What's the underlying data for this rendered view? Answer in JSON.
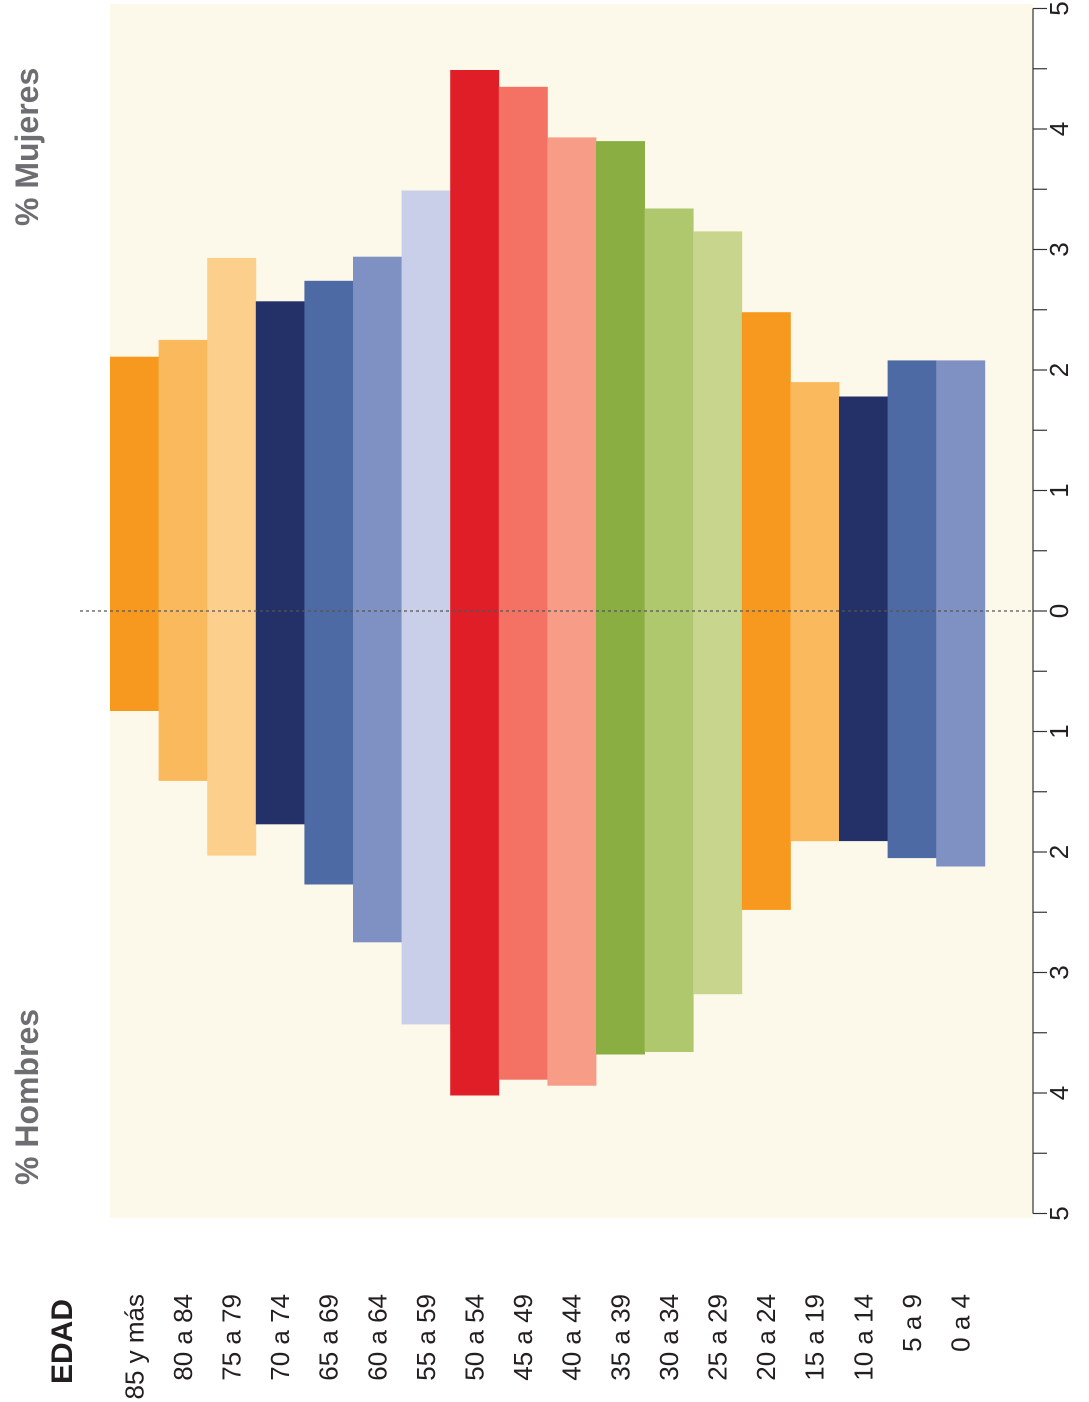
{
  "chart_data": {
    "type": "bar",
    "subtype": "population-pyramid",
    "orientation": "rotated",
    "age_title": "EDAD",
    "men_label": "% Hombres",
    "women_label": "% Mujeres",
    "age_groups": [
      "85 y más",
      "80 a 84",
      "75 a 79",
      "70 a 74",
      "65 a 69",
      "60 a 64",
      "55 a 59",
      "50 a 54",
      "45 a 49",
      "40 a 44",
      "35 a 39",
      "30 a 34",
      "25 a 29",
      "20 a 24",
      "15 a 19",
      "10 a 14",
      "5 a 9",
      "0 a 4"
    ],
    "series": [
      {
        "name": "% Hombres",
        "values": [
          0.83,
          1.41,
          2.03,
          1.77,
          2.27,
          2.75,
          3.43,
          4.02,
          3.89,
          3.94,
          3.68,
          3.66,
          3.18,
          2.48,
          1.91,
          1.91,
          2.05,
          2.12
        ]
      },
      {
        "name": "% Mujeres",
        "values": [
          2.11,
          2.25,
          2.93,
          2.57,
          2.74,
          2.94,
          3.49,
          4.49,
          4.35,
          3.93,
          3.9,
          3.34,
          3.15,
          2.48,
          1.9,
          1.78,
          2.08,
          2.08
        ]
      }
    ],
    "colors": [
      "#f7991e",
      "#fbb95e",
      "#fcd08c",
      "#243168",
      "#4e6aa4",
      "#7f91c3",
      "#c9cfe9",
      "#e01e27",
      "#f47264",
      "#f79c87",
      "#8aae41",
      "#b0c86d",
      "#c8d68d",
      "#f7991e",
      "#fbb95e",
      "#243168",
      "#4e6aa4",
      "#7f91c3"
    ],
    "axis_ticks": [
      "5",
      "4",
      "3",
      "2",
      "1",
      "0",
      "1",
      "2",
      "3",
      "4",
      "5"
    ],
    "xlim": [
      -5,
      5
    ],
    "background_color": "#fdf9ea",
    "zero_line": "dashed"
  }
}
